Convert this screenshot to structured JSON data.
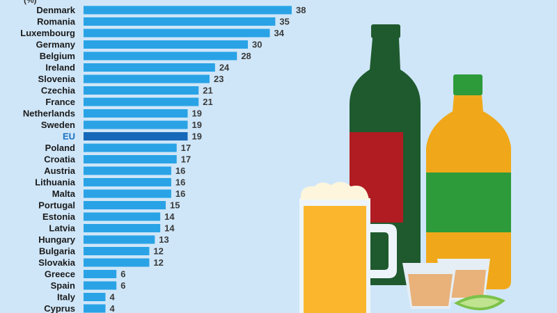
{
  "header_note": "(%)",
  "chart_data": {
    "type": "bar",
    "orientation": "horizontal",
    "title": "",
    "xlabel": "",
    "ylabel": "",
    "xlim": [
      0,
      38
    ],
    "grid": false,
    "legend": "none",
    "highlight_category": "EU",
    "colors": {
      "bar": "#29a3e6",
      "highlight": "#1668b8",
      "highlight_label": "#1a6fc0"
    },
    "categories": [
      "Denmark",
      "Romania",
      "Luxembourg",
      "Germany",
      "Belgium",
      "Ireland",
      "Slovenia",
      "Czechia",
      "France",
      "Netherlands",
      "Sweden",
      "EU",
      "Poland",
      "Croatia",
      "Austria",
      "Lithuania",
      "Malta",
      "Portugal",
      "Estonia",
      "Latvia",
      "Hungary",
      "Bulgaria",
      "Slovakia",
      "Greece",
      "Spain",
      "Italy",
      "Cyprus"
    ],
    "values": [
      38,
      35,
      34,
      30,
      28,
      24,
      23,
      21,
      21,
      19,
      19,
      19,
      17,
      17,
      16,
      16,
      16,
      15,
      14,
      14,
      13,
      12,
      12,
      6,
      6,
      4,
      4
    ]
  },
  "illustration": {
    "wine_bottle": {
      "glass": "#1f5a2e",
      "label": "#b01c22"
    },
    "spirit_bottle": {
      "liquid": "#f0a81a",
      "label": "#2e9b3a",
      "cap": "#2e9b3a"
    },
    "beer_mug": {
      "beer": "#fbb62e",
      "foam": "#fdf6dc",
      "glass": "#eef5fa"
    },
    "shot_glasses": {
      "liquid": "#e8b27a"
    },
    "lime": {
      "color": "#7cc24a"
    }
  }
}
